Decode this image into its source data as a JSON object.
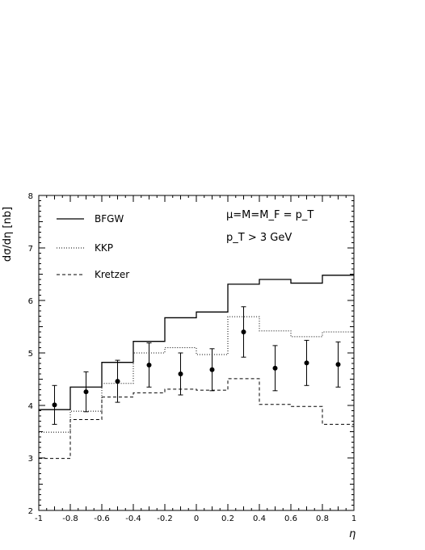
{
  "chart_data": {
    "type": "line",
    "title": "",
    "xlabel": "η",
    "ylabel": "dσ/dη [nb]",
    "xlim": [
      -1,
      1
    ],
    "ylim": [
      2,
      8
    ],
    "x_ticks": [
      "-1",
      "-0.8",
      "-0.6",
      "-0.4",
      "-0.2",
      "0",
      "0.2",
      "0.4",
      "0.6",
      "0.8",
      "1"
    ],
    "y_ticks": [
      "2",
      "3",
      "4",
      "5",
      "6",
      "7",
      "8"
    ],
    "legend_position": "top-left",
    "annotations": [
      "μ=M=M_F = p_T",
      "p_T > 3 GeV"
    ],
    "bin_edges": [
      -1.0,
      -0.8,
      -0.6,
      -0.4,
      -0.2,
      0.0,
      0.2,
      0.4,
      0.6,
      0.8,
      1.0
    ],
    "series": [
      {
        "name": "BFGW",
        "style": "solid",
        "values": [
          3.92,
          4.35,
          4.82,
          5.22,
          5.67,
          5.78,
          6.31,
          6.4,
          6.33,
          6.48
        ]
      },
      {
        "name": "KKP",
        "style": "dotted",
        "values": [
          3.49,
          3.89,
          4.42,
          5.0,
          5.1,
          4.97,
          5.69,
          5.42,
          5.31,
          5.4
        ]
      },
      {
        "name": "Kretzer",
        "style": "dashed",
        "values": [
          2.99,
          3.73,
          4.16,
          4.24,
          4.31,
          4.29,
          4.51,
          4.02,
          3.98,
          3.64
        ]
      }
    ],
    "data_points": {
      "x": [
        -0.9,
        -0.7,
        -0.5,
        -0.3,
        -0.1,
        0.1,
        0.3,
        0.5,
        0.7,
        0.9
      ],
      "y": [
        4.01,
        4.26,
        4.46,
        4.77,
        4.6,
        4.68,
        5.4,
        4.71,
        4.81,
        4.78
      ],
      "err": [
        0.37,
        0.38,
        0.4,
        0.42,
        0.4,
        0.4,
        0.48,
        0.43,
        0.43,
        0.43
      ]
    }
  }
}
